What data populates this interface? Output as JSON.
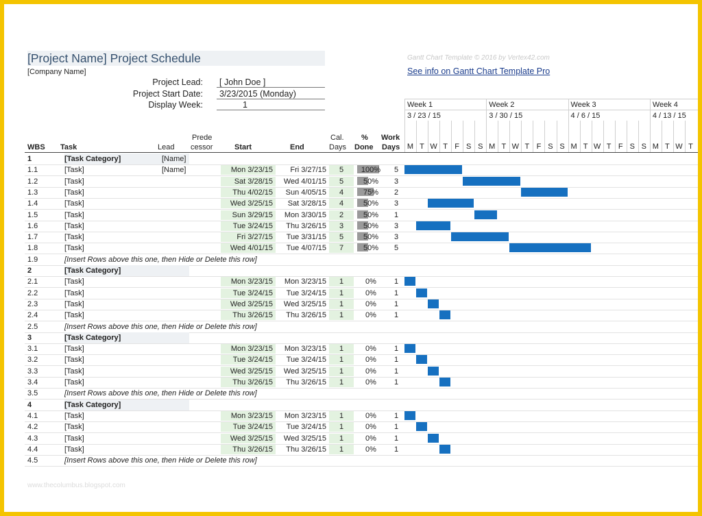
{
  "header": {
    "title": "[Project Name] Project Schedule",
    "company": "[Company Name]",
    "lead_label": "Project Lead:",
    "lead_value": "[ John Doe ]",
    "start_label": "Project Start Date:",
    "start_value": "3/23/2015 (Monday)",
    "week_label": "Display Week:",
    "week_value": "1",
    "watermark": "Gantt Chart Template © 2016 by Vertex42.com",
    "link": "See info on Gantt Chart Template Pro"
  },
  "columns": {
    "wbs": "WBS",
    "task": "Task",
    "lead": "Lead",
    "pred1": "Prede",
    "pred2": "cessor",
    "start": "Start",
    "end": "End",
    "cal1": "Cal.",
    "cal2": "Days",
    "pct1": "%",
    "pct2": "Done",
    "work1": "Work",
    "work2": "Days"
  },
  "weeks": [
    {
      "label": "Week 1",
      "date": "3 / 23 / 15"
    },
    {
      "label": "Week 2",
      "date": "3 / 30 / 15"
    },
    {
      "label": "Week 3",
      "date": "4 / 6 / 15"
    },
    {
      "label": "Week 4",
      "date": "4 / 13 / 15"
    }
  ],
  "days": [
    "M",
    "T",
    "W",
    "T",
    "F",
    "S",
    "S",
    "M",
    "T",
    "W",
    "T",
    "F",
    "S",
    "S",
    "M",
    "T",
    "W",
    "T",
    "F",
    "S",
    "S",
    "M",
    "T",
    "W",
    "T"
  ],
  "rows": [
    {
      "type": "cat",
      "wbs": "1",
      "task": "[Task Category]",
      "lead": "[Name]"
    },
    {
      "type": "task",
      "wbs": "1.1",
      "task": "[Task]",
      "lead": "[Name]",
      "start": "Mon 3/23/15",
      "end": "Fri 3/27/15",
      "cal": "5",
      "pct": "100%",
      "pctv": 1.0,
      "work": "5",
      "off": 0,
      "len": 5
    },
    {
      "type": "task",
      "wbs": "1.2",
      "task": "[Task]",
      "lead": "",
      "start": "Sat 3/28/15",
      "end": "Wed 4/01/15",
      "cal": "5",
      "pct": "50%",
      "pctv": 0.5,
      "work": "3",
      "off": 5,
      "len": 5
    },
    {
      "type": "task",
      "wbs": "1.3",
      "task": "[Task]",
      "lead": "",
      "start": "Thu 4/02/15",
      "end": "Sun 4/05/15",
      "cal": "4",
      "pct": "75%",
      "pctv": 0.75,
      "work": "2",
      "off": 10,
      "len": 4
    },
    {
      "type": "task",
      "wbs": "1.4",
      "task": "[Task]",
      "lead": "",
      "start": "Wed 3/25/15",
      "end": "Sat 3/28/15",
      "cal": "4",
      "pct": "50%",
      "pctv": 0.5,
      "work": "3",
      "off": 2,
      "len": 4
    },
    {
      "type": "task",
      "wbs": "1.5",
      "task": "[Task]",
      "lead": "",
      "start": "Sun 3/29/15",
      "end": "Mon 3/30/15",
      "cal": "2",
      "pct": "50%",
      "pctv": 0.5,
      "work": "1",
      "off": 6,
      "len": 2
    },
    {
      "type": "task",
      "wbs": "1.6",
      "task": "[Task]",
      "lead": "",
      "start": "Tue 3/24/15",
      "end": "Thu 3/26/15",
      "cal": "3",
      "pct": "50%",
      "pctv": 0.5,
      "work": "3",
      "off": 1,
      "len": 3
    },
    {
      "type": "task",
      "wbs": "1.7",
      "task": "[Task]",
      "lead": "",
      "start": "Fri 3/27/15",
      "end": "Tue 3/31/15",
      "cal": "5",
      "pct": "50%",
      "pctv": 0.5,
      "work": "3",
      "off": 4,
      "len": 5
    },
    {
      "type": "task",
      "wbs": "1.8",
      "task": "[Task]",
      "lead": "",
      "start": "Wed 4/01/15",
      "end": "Tue 4/07/15",
      "cal": "7",
      "pct": "50%",
      "pctv": 0.5,
      "work": "5",
      "off": 9,
      "len": 7
    },
    {
      "type": "ins",
      "wbs": "1.9",
      "task": "[Insert Rows above this one, then Hide or Delete this row]"
    },
    {
      "type": "cat",
      "wbs": "2",
      "task": "[Task Category]",
      "lead": ""
    },
    {
      "type": "task",
      "wbs": "2.1",
      "task": "[Task]",
      "lead": "",
      "start": "Mon 3/23/15",
      "end": "Mon 3/23/15",
      "cal": "1",
      "pct": "0%",
      "pctv": 0,
      "work": "1",
      "off": 0,
      "len": 1
    },
    {
      "type": "task",
      "wbs": "2.2",
      "task": "[Task]",
      "lead": "",
      "start": "Tue 3/24/15",
      "end": "Tue 3/24/15",
      "cal": "1",
      "pct": "0%",
      "pctv": 0,
      "work": "1",
      "off": 1,
      "len": 1
    },
    {
      "type": "task",
      "wbs": "2.3",
      "task": "[Task]",
      "lead": "",
      "start": "Wed 3/25/15",
      "end": "Wed 3/25/15",
      "cal": "1",
      "pct": "0%",
      "pctv": 0,
      "work": "1",
      "off": 2,
      "len": 1
    },
    {
      "type": "task",
      "wbs": "2.4",
      "task": "[Task]",
      "lead": "",
      "start": "Thu 3/26/15",
      "end": "Thu 3/26/15",
      "cal": "1",
      "pct": "0%",
      "pctv": 0,
      "work": "1",
      "off": 3,
      "len": 1
    },
    {
      "type": "ins",
      "wbs": "2.5",
      "task": "[Insert Rows above this one, then Hide or Delete this row]"
    },
    {
      "type": "cat",
      "wbs": "3",
      "task": "[Task Category]",
      "lead": ""
    },
    {
      "type": "task",
      "wbs": "3.1",
      "task": "[Task]",
      "lead": "",
      "start": "Mon 3/23/15",
      "end": "Mon 3/23/15",
      "cal": "1",
      "pct": "0%",
      "pctv": 0,
      "work": "1",
      "off": 0,
      "len": 1
    },
    {
      "type": "task",
      "wbs": "3.2",
      "task": "[Task]",
      "lead": "",
      "start": "Tue 3/24/15",
      "end": "Tue 3/24/15",
      "cal": "1",
      "pct": "0%",
      "pctv": 0,
      "work": "1",
      "off": 1,
      "len": 1
    },
    {
      "type": "task",
      "wbs": "3.3",
      "task": "[Task]",
      "lead": "",
      "start": "Wed 3/25/15",
      "end": "Wed 3/25/15",
      "cal": "1",
      "pct": "0%",
      "pctv": 0,
      "work": "1",
      "off": 2,
      "len": 1
    },
    {
      "type": "task",
      "wbs": "3.4",
      "task": "[Task]",
      "lead": "",
      "start": "Thu 3/26/15",
      "end": "Thu 3/26/15",
      "cal": "1",
      "pct": "0%",
      "pctv": 0,
      "work": "1",
      "off": 3,
      "len": 1
    },
    {
      "type": "ins",
      "wbs": "3.5",
      "task": "[Insert Rows above this one, then Hide or Delete this row]"
    },
    {
      "type": "cat",
      "wbs": "4",
      "task": "[Task Category]",
      "lead": ""
    },
    {
      "type": "task",
      "wbs": "4.1",
      "task": "[Task]",
      "lead": "",
      "start": "Mon 3/23/15",
      "end": "Mon 3/23/15",
      "cal": "1",
      "pct": "0%",
      "pctv": 0,
      "work": "1",
      "off": 0,
      "len": 1
    },
    {
      "type": "task",
      "wbs": "4.2",
      "task": "[Task]",
      "lead": "",
      "start": "Tue 3/24/15",
      "end": "Tue 3/24/15",
      "cal": "1",
      "pct": "0%",
      "pctv": 0,
      "work": "1",
      "off": 1,
      "len": 1
    },
    {
      "type": "task",
      "wbs": "4.3",
      "task": "[Task]",
      "lead": "",
      "start": "Wed 3/25/15",
      "end": "Wed 3/25/15",
      "cal": "1",
      "pct": "0%",
      "pctv": 0,
      "work": "1",
      "off": 2,
      "len": 1
    },
    {
      "type": "task",
      "wbs": "4.4",
      "task": "[Task]",
      "lead": "",
      "start": "Thu 3/26/15",
      "end": "Thu 3/26/15",
      "cal": "1",
      "pct": "0%",
      "pctv": 0,
      "work": "1",
      "off": 3,
      "len": 1
    },
    {
      "type": "ins",
      "wbs": "4.5",
      "task": "[Insert Rows above this one, then Hide or Delete this row]"
    }
  ],
  "footer": "www.thecolumbus.blogspot.com",
  "colors": {
    "bar": "#1670c0",
    "accent": "#35506e",
    "cell_green": "#e3f2e0",
    "pct_fill": "#9a9a9a",
    "frame": "#f4c400"
  }
}
